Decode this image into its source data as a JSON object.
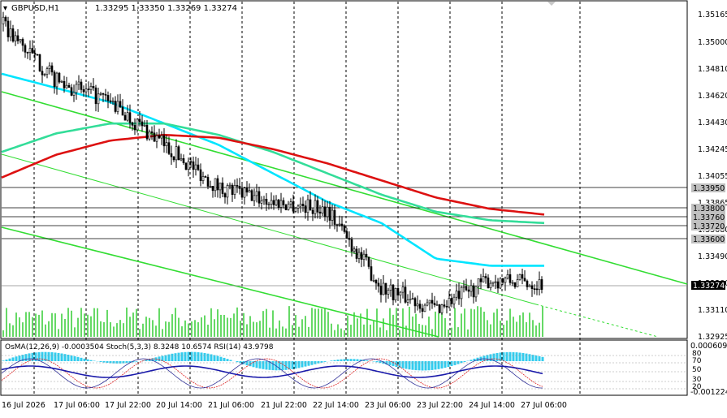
{
  "header": {
    "symbol": "GBPUSD,H1",
    "ohlc": "1.33295 1.33350 1.33269 1.33274"
  },
  "price_axis": {
    "ticks": [
      "1.35165",
      "1.35000",
      "1.34810",
      "1.34620",
      "1.34430",
      "1.34245",
      "1.34055",
      "1.33865",
      "1.33680",
      "1.33490",
      "1.33300",
      "1.33110",
      "1.32925"
    ],
    "labels": {
      "level_1": "1.33950",
      "level_2": "1.33800",
      "level_3": "1.33760",
      "level_4": "1.33720",
      "level_5": "1.33600",
      "current": "1.33274"
    }
  },
  "indicator": {
    "title": "OsMA(12,26,9) -0.0003504  Stoch(5,3,3) 8.3248 10.6574  RSI(14) 43.9798",
    "scale_top": "0.0006095",
    "scale_bottom": "-0.001224",
    "levels": [
      "80",
      "70",
      "50",
      "30",
      "20"
    ]
  },
  "time_axis": {
    "labels": [
      "16 Jul 2026",
      "17 Jul 06:00",
      "17 Jul 22:00",
      "20 Jul 14:00",
      "21 Jul 06:00",
      "21 Jul 22:00",
      "22 Jul 14:00",
      "23 Jul 06:00",
      "23 Jul 22:00",
      "24 Jul 14:00",
      "27 Jul 06:00"
    ]
  },
  "chart_data": {
    "type": "line",
    "title": "GBPUSD,H1",
    "x": [
      "16 Jul 2026",
      "17 Jul 06:00",
      "17 Jul 22:00",
      "20 Jul 14:00",
      "21 Jul 06:00",
      "21 Jul 22:00",
      "22 Jul 14:00",
      "23 Jul 06:00",
      "23 Jul 22:00",
      "24 Jul 14:00",
      "27 Jul 06:00"
    ],
    "series": [
      {
        "values": [
          1.351,
          1.347,
          1.3455,
          1.3425,
          1.3395,
          1.3385,
          1.338,
          1.3325,
          1.331,
          1.333,
          1.33274
        ]
      },
      {
        "values": [
          1.3475,
          1.3465,
          1.3455,
          1.344,
          1.3425,
          1.3405,
          1.3385,
          1.337,
          1.3345,
          1.334,
          1.334
        ]
      },
      {
        "values": [
          1.342,
          1.3433,
          1.344,
          1.344,
          1.3432,
          1.342,
          1.3405,
          1.339,
          1.3378,
          1.3372,
          1.337
        ]
      },
      {
        "values": [
          1.3402,
          1.3418,
          1.3428,
          1.3432,
          1.343,
          1.3422,
          1.3412,
          1.34,
          1.3388,
          1.338,
          1.3376
        ]
      }
    ],
    "ylim": [
      1.329,
      1.3524
    ],
    "colors": {
      "price": "#000000",
      "fast_ma": "#00e5ff",
      "mid_ma": "#33dd99",
      "slow_ma": "#dd1111",
      "trend": "#33dd33",
      "level": "#000000"
    }
  }
}
